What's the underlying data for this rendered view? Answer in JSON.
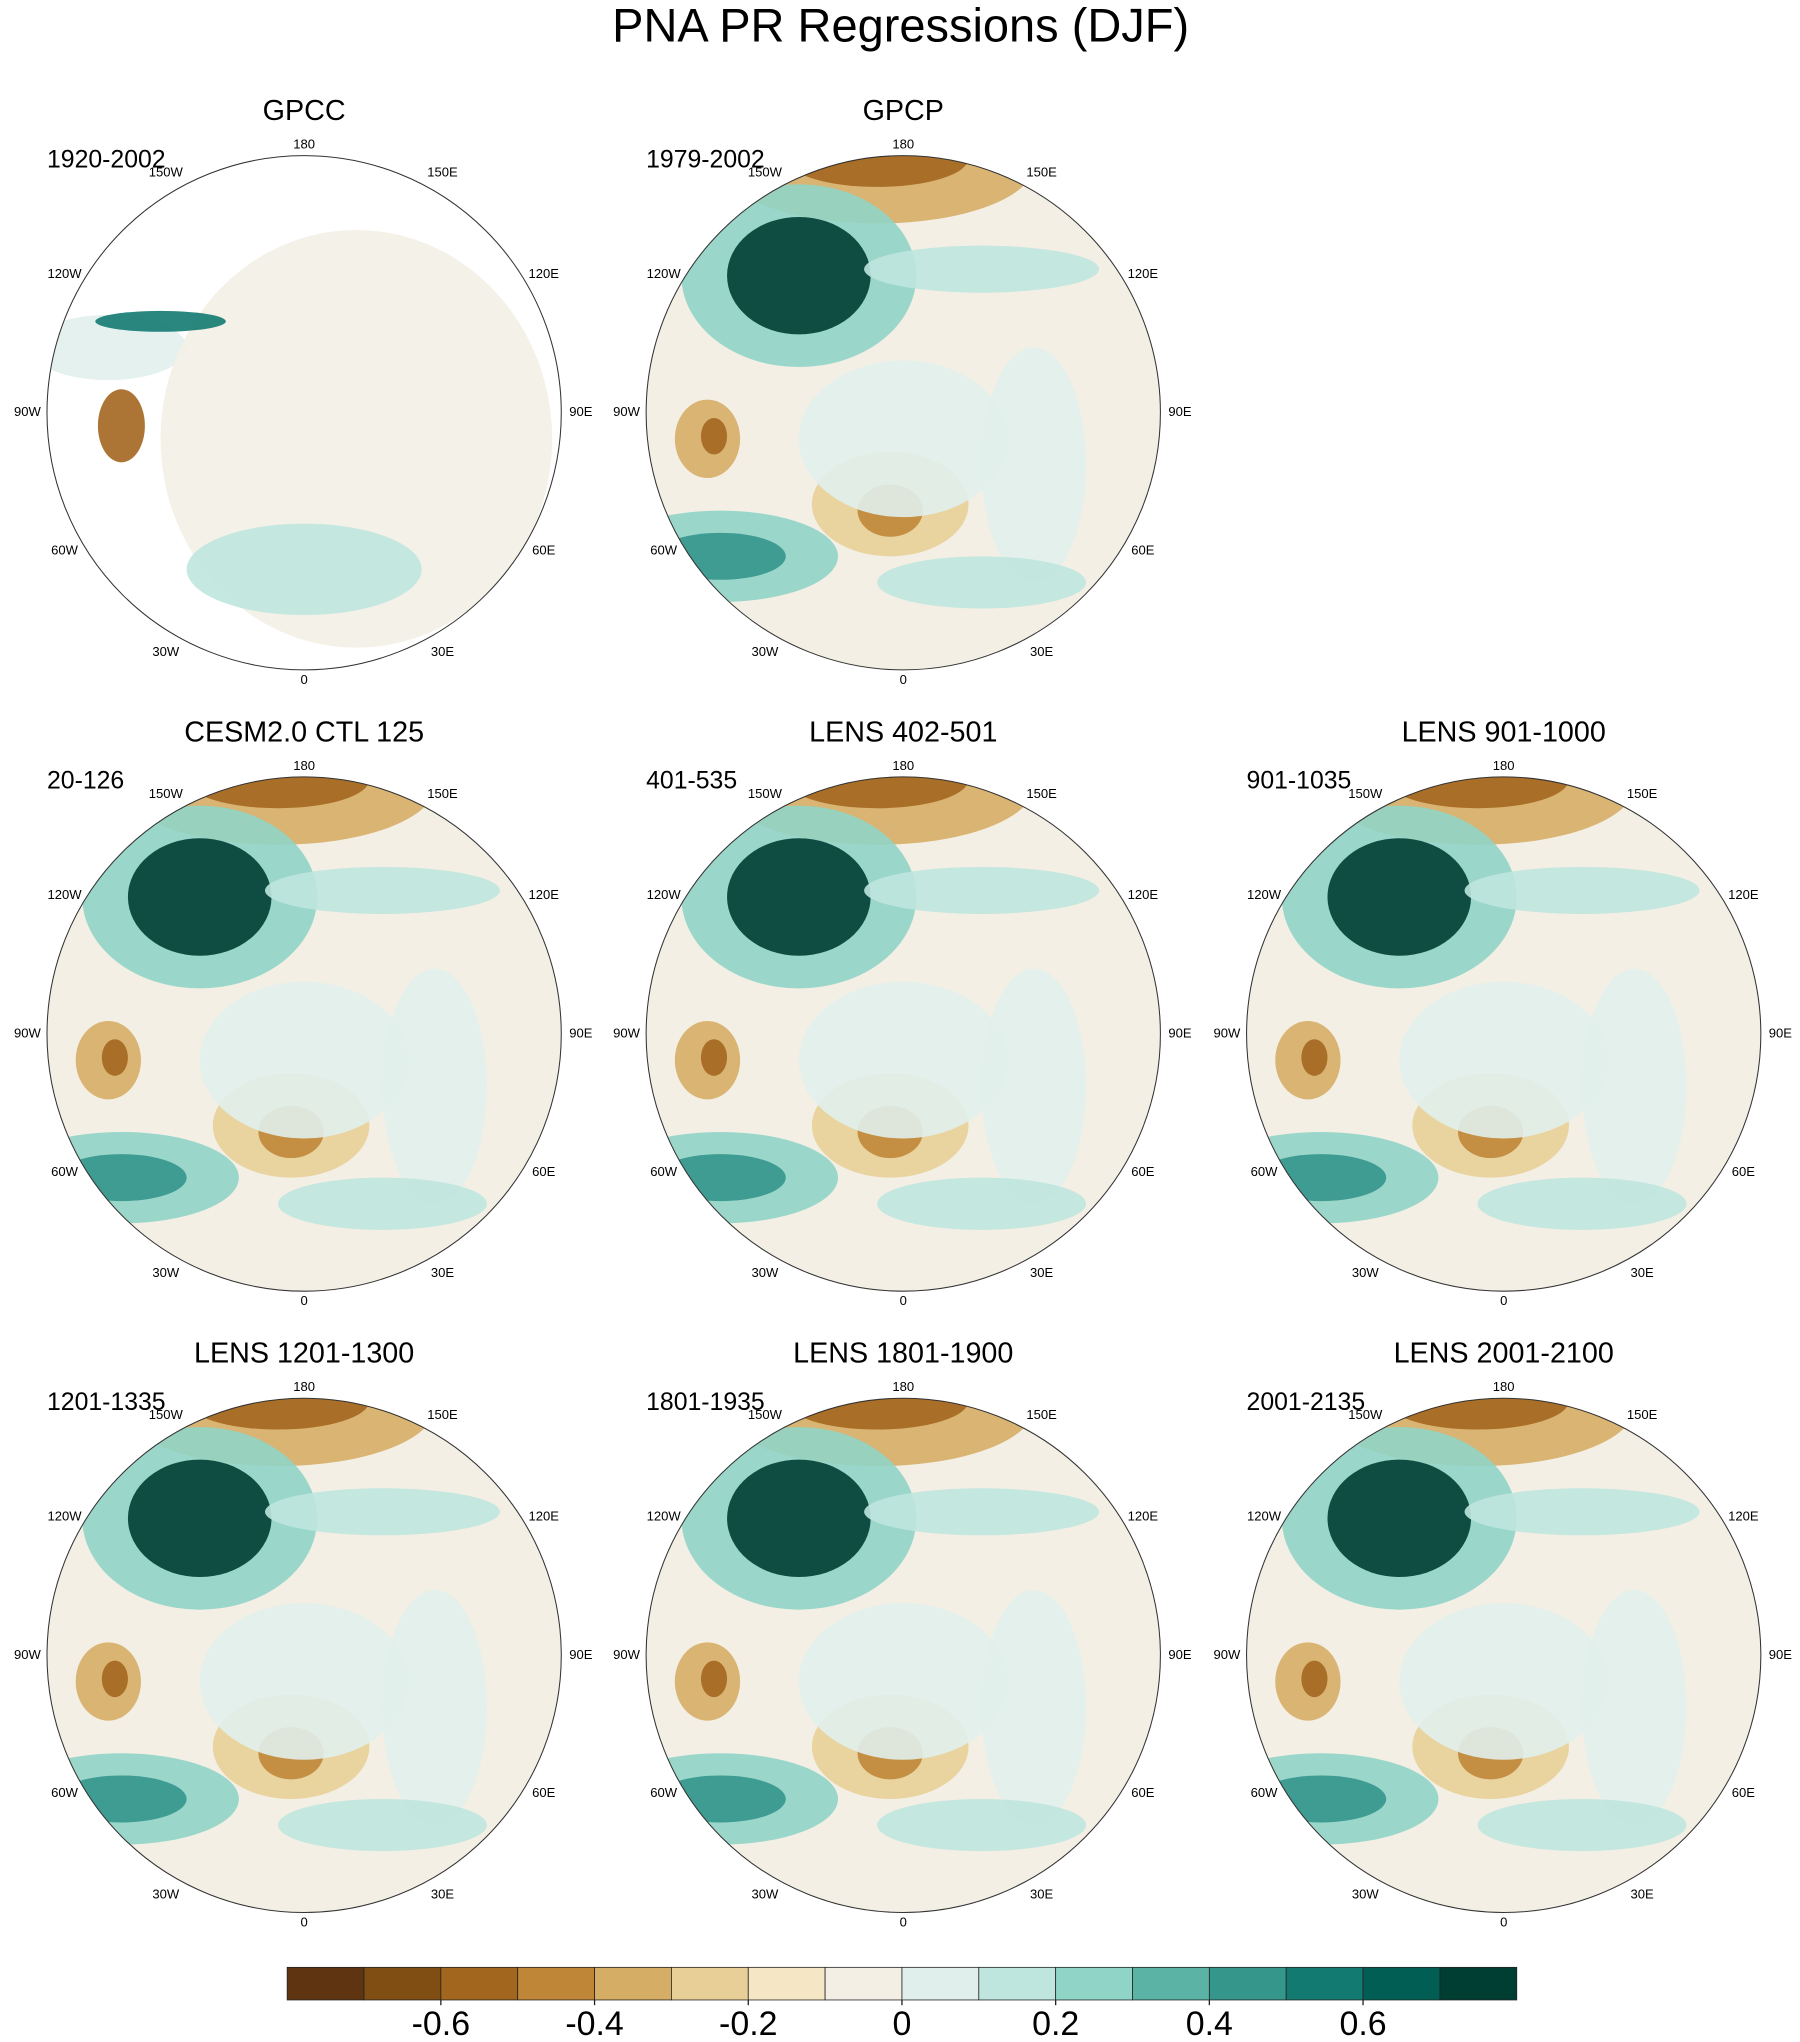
{
  "chart_data": {
    "type": "polar-maps",
    "title": "PNA PR Regressions (DJF)",
    "lon_labels": [
      "180",
      "150E",
      "120E",
      "90E",
      "60E",
      "30E",
      "0",
      "30W",
      "60W",
      "90W",
      "120W",
      "150W"
    ],
    "panels": [
      {
        "title": "GPCC",
        "subtitle": "1920-2002"
      },
      {
        "title": "GPCP",
        "subtitle": "1979-2002"
      },
      {
        "title": "CESM2.0 CTL 125",
        "subtitle": "20-126"
      },
      {
        "title": "LENS 402-501",
        "subtitle": "401-535"
      },
      {
        "title": "LENS 901-1000",
        "subtitle": "901-1035"
      },
      {
        "title": "LENS 1201-1300",
        "subtitle": "1201-1335"
      },
      {
        "title": "LENS 1801-1900",
        "subtitle": "1801-1935"
      },
      {
        "title": "LENS 2001-2100",
        "subtitle": "2001-2135"
      }
    ],
    "colorbar": {
      "xlim": [
        -0.8,
        0.8
      ],
      "xticks": [
        -0.6,
        -0.4,
        -0.2,
        0,
        0.2,
        0.4,
        0.6
      ],
      "colors": [
        "#5e3510",
        "#804d12",
        "#a3661f",
        "#c08638",
        "#d6ad65",
        "#e8cf97",
        "#f5e6c5",
        "#f3efe5",
        "#e1efec",
        "#bfe6de",
        "#90d4c7",
        "#5ab3a5",
        "#35968c",
        "#137a71",
        "#015e55",
        "#003d33"
      ]
    }
  }
}
